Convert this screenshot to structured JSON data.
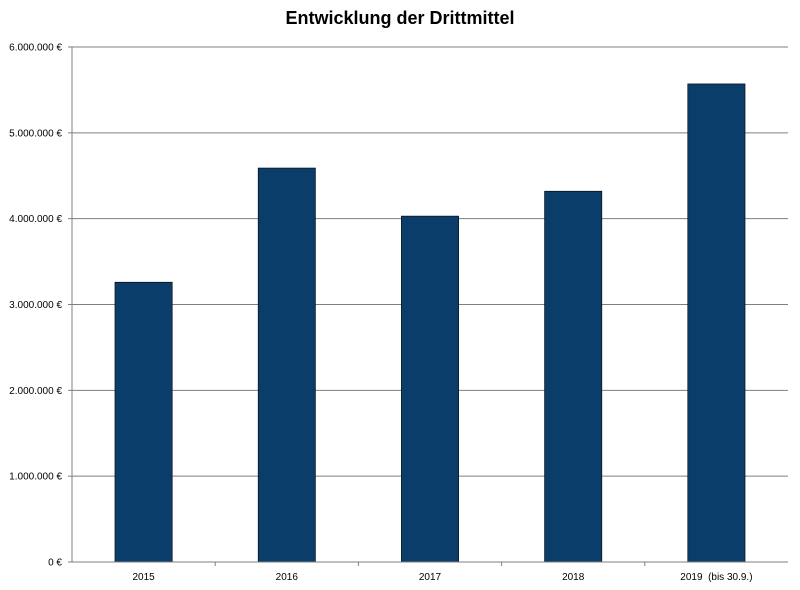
{
  "chart_data": {
    "type": "bar",
    "title": "Entwicklung der Drittmittel",
    "xlabel": "",
    "ylabel": "",
    "categories": [
      "2015",
      "2016",
      "2017",
      "2018",
      "2019  (bis 30.9.)"
    ],
    "values": [
      3260000,
      4590000,
      4030000,
      4320000,
      5570000
    ],
    "ylim": [
      0,
      6000000
    ],
    "yticks": [
      0,
      1000000,
      2000000,
      3000000,
      4000000,
      5000000,
      6000000
    ],
    "ytick_labels": [
      "0 €",
      "1.000.000 €",
      "2.000.000 €",
      "3.000.000 €",
      "4.000.000 €",
      "5.000.000 €",
      "6.000.000 €"
    ],
    "grid": true,
    "legend": "none",
    "bar_color": "#0b3d6b",
    "bar_outline_color": "#000000",
    "grid_color": "#7f7f7f"
  }
}
